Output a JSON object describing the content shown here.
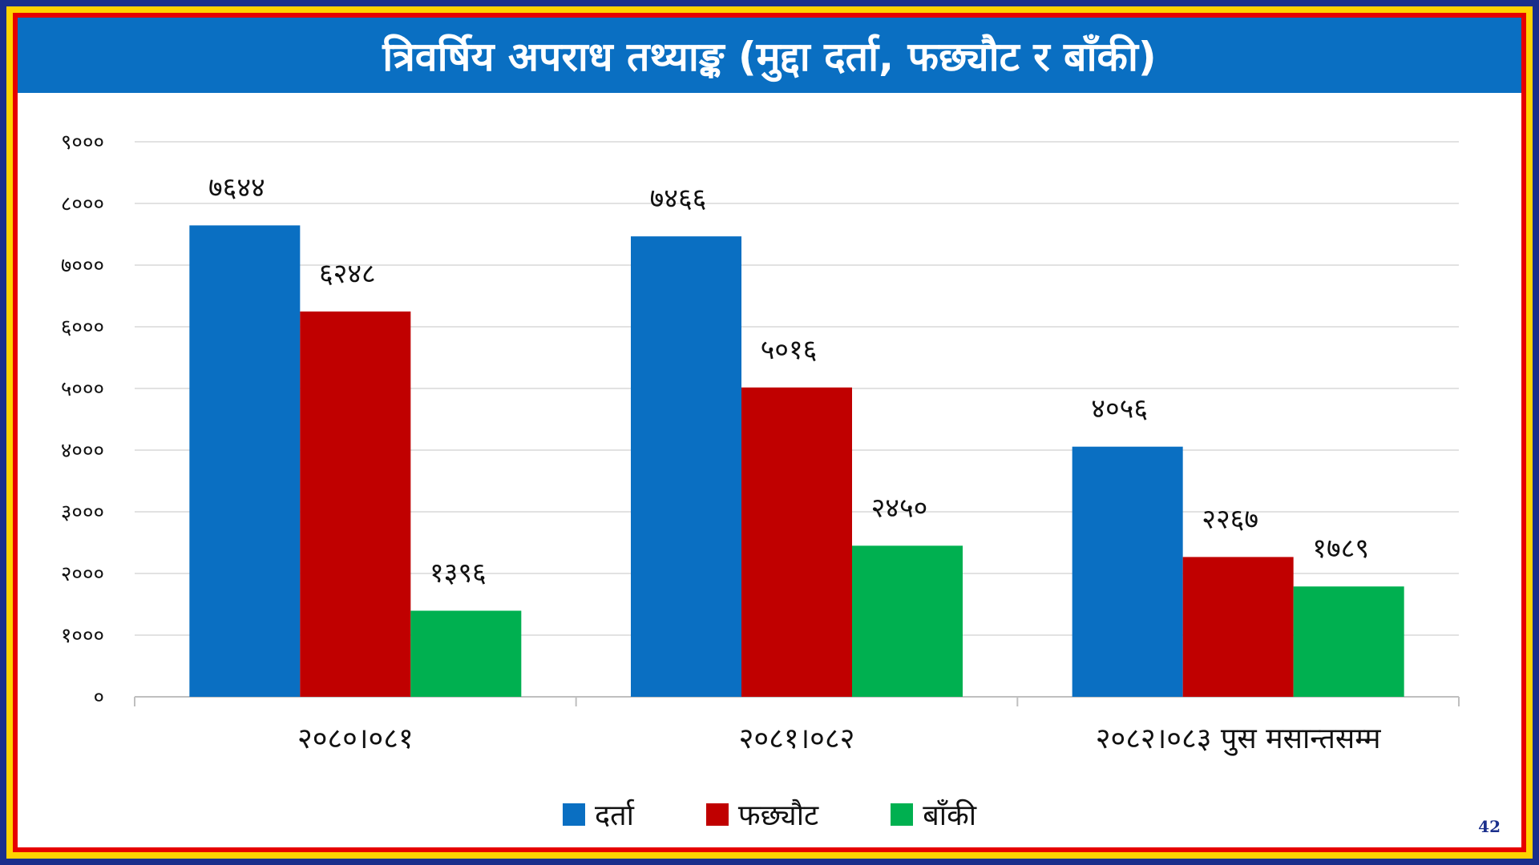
{
  "slide": {
    "title": "त्रिवर्षिय अपराध तथ्याङ्क (मुद्दा दर्ता, फछ्यौट र बाँकी)",
    "page_number": "42"
  },
  "colors": {
    "title_bar": "#0a6fc2",
    "border_outer": "#1a2f8c",
    "border_yellow": "#ffd200",
    "border_red": "#e60000"
  },
  "chart_data": {
    "type": "bar",
    "title": "",
    "xlabel": "",
    "ylabel": "",
    "ylim": [
      0,
      9000
    ],
    "yticks": [
      0,
      1000,
      2000,
      3000,
      4000,
      5000,
      6000,
      7000,
      8000,
      9000
    ],
    "ytick_labels": [
      "०",
      "१०००",
      "२०००",
      "३०००",
      "४०००",
      "५०००",
      "६०००",
      "७०००",
      "८०००",
      "९०००"
    ],
    "grid": true,
    "legend_position": "bottom",
    "categories": [
      "२०८०।०८१",
      "२०८१।०८२",
      "२०८२।०८३ पुस मसान्तसम्म"
    ],
    "series": [
      {
        "name": "दर्ता",
        "color": "#0a6fc2",
        "values": [
          7644,
          7466,
          4056
        ],
        "labels": [
          "७६४४",
          "७४६६",
          "४०५६"
        ]
      },
      {
        "name": "फछ्यौट",
        "color": "#c00000",
        "values": [
          6248,
          5016,
          2267
        ],
        "labels": [
          "६२४८",
          "५०१६",
          "२२६७"
        ]
      },
      {
        "name": "बाँकी",
        "color": "#00b050",
        "values": [
          1396,
          2450,
          1789
        ],
        "labels": [
          "१३९६",
          "२४५०",
          "१७८९"
        ]
      }
    ]
  }
}
